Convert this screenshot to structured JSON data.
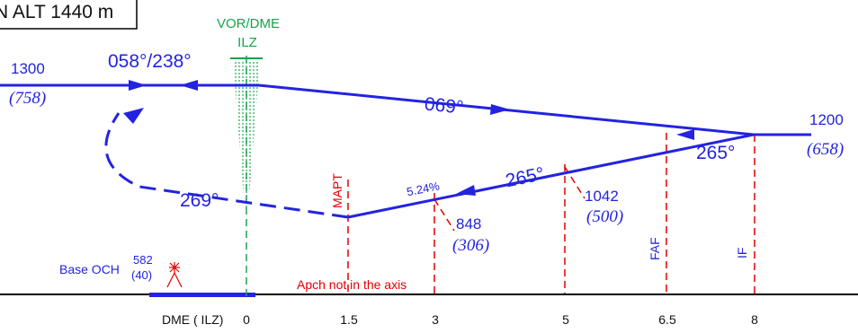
{
  "header": {
    "altitude_box": "N ALT 1440 m"
  },
  "colors": {
    "path_blue": "#2323e0",
    "ref_red": "#e00000",
    "navaid_green": "#16a34a",
    "ground_black": "#000000"
  },
  "navaid": {
    "type": "VOR/DME",
    "ident": "ILZ"
  },
  "tracks": {
    "inbound_left": "058°/238°",
    "upper_right": "069°",
    "lower_right": "265°",
    "lower_left": "269°",
    "right_segment": "265°"
  },
  "altitudes": {
    "left": {
      "alt": "1300",
      "height": "(758)"
    },
    "right": {
      "alt": "1200",
      "height": "(658)"
    },
    "fix_5": {
      "alt": "1042",
      "height": "(500)"
    },
    "fix_3": {
      "alt": "848",
      "height": "(306)"
    }
  },
  "gradient": "5.24%",
  "fixes": {
    "mapt": "MAPT",
    "faf": "FAF",
    "if": "IF"
  },
  "base_och": {
    "label": "Base OCH",
    "value": "582",
    "height": "(40)"
  },
  "notes": {
    "apch": "Apch not in the axis"
  },
  "dme_axis": {
    "label": "DME ( ILZ)",
    "ticks": [
      "0",
      "1.5",
      "3",
      "5",
      "6.5",
      "8"
    ]
  },
  "icons": {
    "obstacle": "tower-obstacle-icon",
    "navaid": "vor-dme-icon"
  }
}
